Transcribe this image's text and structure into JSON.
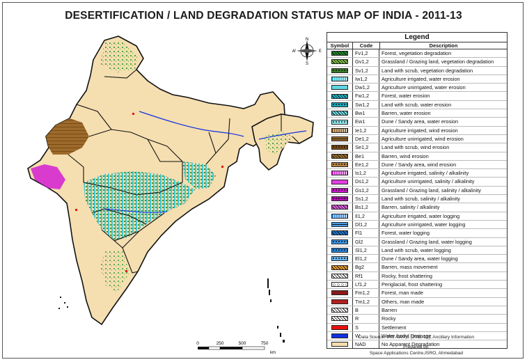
{
  "title": "DESERTIFICATION / LAND DEGRADATION STATUS MAP OF INDIA - 2011-13",
  "compass": {
    "n": "N",
    "s": "S",
    "e": "E",
    "w": "W"
  },
  "scale": {
    "ticks": [
      "0",
      "250",
      "500",
      "750"
    ],
    "unit": "km"
  },
  "legend": {
    "title": "Legend",
    "headers": {
      "symbol": "Symbol",
      "code": "Code",
      "description": "Description"
    },
    "items": [
      {
        "code": "Fv1,2",
        "description": "Forest, vegetation degradation",
        "color": "#1f8a2a",
        "pattern": "diag"
      },
      {
        "code": "Gv1,2",
        "description": "Grassland / Grazing land, vegetation degradation",
        "color": "#7cc242",
        "pattern": "diag"
      },
      {
        "code": "Sv1,2",
        "description": "Land with scrub, vegetation degradation",
        "color": "#3d7d2a",
        "pattern": "dots"
      },
      {
        "code": "Iw1,2",
        "description": "Agriculture irrigated, water erosion",
        "color": "#2ec4d6",
        "pattern": "vert"
      },
      {
        "code": "Dw1,2",
        "description": "Agriculture unirrigated, water erosion",
        "color": "#5fd6e0",
        "pattern": "solid"
      },
      {
        "code": "Fw1,2",
        "description": "Forest, water erosion",
        "color": "#20b7c7",
        "pattern": "diag"
      },
      {
        "code": "Sw1,2",
        "description": "Land with scrub, water erosion",
        "color": "#18a8b8",
        "pattern": "dots"
      },
      {
        "code": "Bw1",
        "description": "Barren, water erosion",
        "color": "#6fe0ea",
        "pattern": "diag"
      },
      {
        "code": "Ew1",
        "description": "Dune / Sandy area, water erosion",
        "color": "#8feaf0",
        "pattern": "dots"
      },
      {
        "code": "Ie1,2",
        "description": "Agriculture irrigated, wind erosion",
        "color": "#8a5a1e",
        "pattern": "vert"
      },
      {
        "code": "De1,2",
        "description": "Agriculture unirrigated, wind erosion",
        "color": "#9c6a2a",
        "pattern": "horiz"
      },
      {
        "code": "Se1,2",
        "description": "Land with scrub, wind erosion",
        "color": "#7a4a16",
        "pattern": "dots"
      },
      {
        "code": "Be1",
        "description": "Barren, wind erosion",
        "color": "#a0702e",
        "pattern": "diag"
      },
      {
        "code": "Ee1,2",
        "description": "Dune / Sandy area, wind erosion",
        "color": "#b88440",
        "pattern": "dots"
      },
      {
        "code": "Is1,2",
        "description": "Agriculture irrigated, salinity / alkalinity",
        "color": "#d21fd2",
        "pattern": "vert"
      },
      {
        "code": "Ds1,2",
        "description": "Agriculture unirrigated, salinity / alkalinity",
        "color": "#e040e0",
        "pattern": "solid"
      },
      {
        "code": "Gs1,2",
        "description": "Grassland / Grazing land, salinity / alkalinity",
        "color": "#c81ec8",
        "pattern": "dots"
      },
      {
        "code": "Ss1,2",
        "description": "Land with scrub, salinity / alkalinity",
        "color": "#b010b0",
        "pattern": "dots"
      },
      {
        "code": "Bs1,2",
        "description": "Barren, salinity / alkalinity",
        "color": "#e860e8",
        "pattern": "diag"
      },
      {
        "code": "Il1,2",
        "description": "Agriculture irrigated, water logging",
        "color": "#2f8be0",
        "pattern": "vert"
      },
      {
        "code": "Dl1,2",
        "description": "Agriculture unirrigated, water logging",
        "color": "#4aa0ea",
        "pattern": "horiz"
      },
      {
        "code": "Fl1",
        "description": "Forest, water logging",
        "color": "#1e78d0",
        "pattern": "diag"
      },
      {
        "code": "Gl2",
        "description": "Grassland / Grazing land, water logging",
        "color": "#3a94e4",
        "pattern": "dots"
      },
      {
        "code": "Sl1,2",
        "description": "Land with scrub, water logging",
        "color": "#2a84d8",
        "pattern": "dots"
      },
      {
        "code": "El1,2",
        "description": "Dune / Sandy area, water logging",
        "color": "#66b4f0",
        "pattern": "dots"
      },
      {
        "code": "Bg2",
        "description": "Barren, mass movement",
        "color": "#f0a030",
        "pattern": "diag"
      },
      {
        "code": "Rf1",
        "description": "Rocky, frost shattering",
        "color": "#ffffff",
        "pattern": "diag"
      },
      {
        "code": "Lf1,2",
        "description": "Periglacial, frost shattering",
        "color": "#ffffff",
        "pattern": "circles"
      },
      {
        "code": "Fm1,2",
        "description": "Forest, man made",
        "color": "#8a1a1a",
        "pattern": "solid"
      },
      {
        "code": "Tm1,2",
        "description": "Others, man made",
        "color": "#b02020",
        "pattern": "solid"
      },
      {
        "code": "B",
        "description": "Barren",
        "color": "#ffffff",
        "pattern": "diag"
      },
      {
        "code": "R",
        "description": "Rocky",
        "color": "#ffffff",
        "pattern": "diag"
      },
      {
        "code": "S",
        "description": "Settlement",
        "color": "#e81010",
        "pattern": "solid"
      },
      {
        "code": "W",
        "description": "Water body/ Drainage",
        "color": "#1030e0",
        "pattern": "solid"
      },
      {
        "code": "NAD",
        "description": "No Apparent Degradation",
        "color": "#f5deb0",
        "pattern": "solid"
      }
    ]
  },
  "footer": {
    "source": "Data Source: IRS AWiFS (2011-13), Ancillary Information",
    "prepared_label": "Prepared by:",
    "prepared_by": "Space Applications Centre,ISRO, Ahmedabad"
  }
}
